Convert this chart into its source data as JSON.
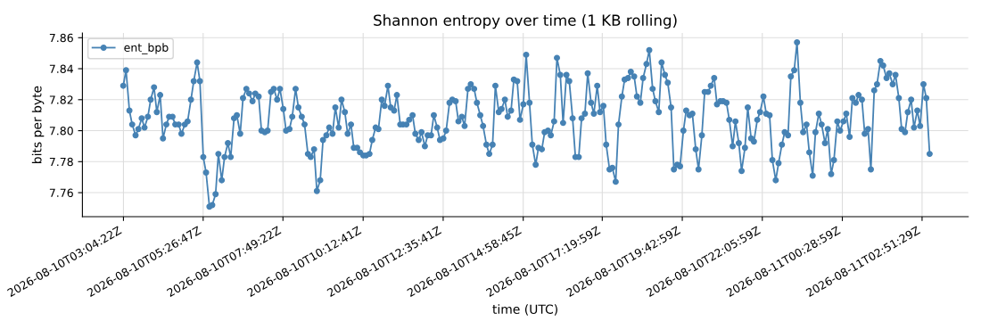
{
  "chart_data": {
    "type": "line",
    "title": "Shannon entropy over time (1 KB rolling)",
    "xlabel": "time (UTC)",
    "ylabel": "bits per byte",
    "x": [
      "2026-08-10T03:04",
      "2026-08-10T03:09",
      "2026-08-10T03:15",
      "2026-08-10T03:20",
      "2026-08-10T03:26",
      "2026-08-10T03:31",
      "2026-08-10T03:37",
      "2026-08-10T03:42",
      "2026-08-10T03:48",
      "2026-08-10T03:53",
      "2026-08-10T03:59",
      "2026-08-10T04:04",
      "2026-08-10T04:10",
      "2026-08-10T04:15",
      "2026-08-10T04:21",
      "2026-08-10T04:26",
      "2026-08-10T04:32",
      "2026-08-10T04:37",
      "2026-08-10T04:43",
      "2026-08-10T04:48",
      "2026-08-10T04:54",
      "2026-08-10T04:59",
      "2026-08-10T05:05",
      "2026-08-10T05:10",
      "2026-08-10T05:16",
      "2026-08-10T05:21",
      "2026-08-10T05:27",
      "2026-08-10T05:32",
      "2026-08-10T05:38",
      "2026-08-10T05:43",
      "2026-08-10T05:49",
      "2026-08-10T05:54",
      "2026-08-10T06:00",
      "2026-08-10T06:05",
      "2026-08-10T06:11",
      "2026-08-10T06:16",
      "2026-08-10T06:22",
      "2026-08-10T06:27",
      "2026-08-10T06:33",
      "2026-08-10T06:38",
      "2026-08-10T06:44",
      "2026-08-10T06:49",
      "2026-08-10T06:55",
      "2026-08-10T07:00",
      "2026-08-10T07:06",
      "2026-08-10T07:11",
      "2026-08-10T07:17",
      "2026-08-10T07:22",
      "2026-08-10T07:28",
      "2026-08-10T07:33",
      "2026-08-10T07:39",
      "2026-08-10T07:44",
      "2026-08-10T07:50",
      "2026-08-10T07:55",
      "2026-08-10T08:01",
      "2026-08-10T08:06",
      "2026-08-10T08:12",
      "2026-08-10T08:17",
      "2026-08-10T08:23",
      "2026-08-10T08:28",
      "2026-08-10T08:34",
      "2026-08-10T08:39",
      "2026-08-10T08:45",
      "2026-08-10T08:50",
      "2026-08-10T08:56",
      "2026-08-10T09:01",
      "2026-08-10T09:07",
      "2026-08-10T09:12",
      "2026-08-10T09:18",
      "2026-08-10T09:23",
      "2026-08-10T09:29",
      "2026-08-10T09:34",
      "2026-08-10T09:40",
      "2026-08-10T09:45",
      "2026-08-10T09:51",
      "2026-08-10T09:56",
      "2026-08-10T10:02",
      "2026-08-10T10:07",
      "2026-08-10T10:13",
      "2026-08-10T10:18",
      "2026-08-10T10:24",
      "2026-08-10T10:29",
      "2026-08-10T10:35",
      "2026-08-10T10:40",
      "2026-08-10T10:46",
      "2026-08-10T10:51",
      "2026-08-10T10:57",
      "2026-08-10T11:02",
      "2026-08-10T11:08",
      "2026-08-10T11:13",
      "2026-08-10T11:19",
      "2026-08-10T11:24",
      "2026-08-10T11:30",
      "2026-08-10T11:35",
      "2026-08-10T11:41",
      "2026-08-10T11:46",
      "2026-08-10T11:52",
      "2026-08-10T11:57",
      "2026-08-10T12:03",
      "2026-08-10T12:08",
      "2026-08-10T12:14",
      "2026-08-10T12:19",
      "2026-08-10T12:25",
      "2026-08-10T12:30",
      "2026-08-10T12:36",
      "2026-08-10T12:41",
      "2026-08-10T12:47",
      "2026-08-10T12:52",
      "2026-08-10T12:58",
      "2026-08-10T13:03",
      "2026-08-10T13:09",
      "2026-08-10T13:14",
      "2026-08-10T13:20",
      "2026-08-10T13:25",
      "2026-08-10T13:31",
      "2026-08-10T13:36",
      "2026-08-10T13:42",
      "2026-08-10T13:47",
      "2026-08-10T13:53",
      "2026-08-10T13:58",
      "2026-08-10T14:04",
      "2026-08-10T14:09",
      "2026-08-10T14:15",
      "2026-08-10T14:20",
      "2026-08-10T14:26",
      "2026-08-10T14:31",
      "2026-08-10T14:37",
      "2026-08-10T14:42",
      "2026-08-10T14:48",
      "2026-08-10T14:53",
      "2026-08-10T14:59",
      "2026-08-10T15:04",
      "2026-08-10T15:10",
      "2026-08-10T15:15",
      "2026-08-10T15:21",
      "2026-08-10T15:26",
      "2026-08-10T15:32",
      "2026-08-10T15:37",
      "2026-08-10T15:43",
      "2026-08-10T15:48",
      "2026-08-10T15:54",
      "2026-08-10T15:59",
      "2026-08-10T16:05",
      "2026-08-10T16:10",
      "2026-08-10T16:16",
      "2026-08-10T16:21",
      "2026-08-10T16:27",
      "2026-08-10T16:32",
      "2026-08-10T16:38",
      "2026-08-10T16:43",
      "2026-08-10T16:49",
      "2026-08-10T16:54",
      "2026-08-10T17:00",
      "2026-08-10T17:05",
      "2026-08-10T17:11",
      "2026-08-10T17:16",
      "2026-08-10T17:22",
      "2026-08-10T17:27",
      "2026-08-10T17:33",
      "2026-08-10T17:38",
      "2026-08-10T17:44",
      "2026-08-10T17:49",
      "2026-08-10T17:55",
      "2026-08-10T18:00",
      "2026-08-10T18:06",
      "2026-08-10T18:11",
      "2026-08-10T18:17",
      "2026-08-10T18:22",
      "2026-08-10T18:28",
      "2026-08-10T18:33",
      "2026-08-10T18:39",
      "2026-08-10T18:44",
      "2026-08-10T18:50",
      "2026-08-10T18:55",
      "2026-08-10T19:01",
      "2026-08-10T19:06",
      "2026-08-10T19:12",
      "2026-08-10T19:17",
      "2026-08-10T19:23",
      "2026-08-10T19:28",
      "2026-08-10T19:34",
      "2026-08-10T19:39",
      "2026-08-10T19:45",
      "2026-08-10T19:50",
      "2026-08-10T19:56",
      "2026-08-10T20:01",
      "2026-08-10T20:07",
      "2026-08-10T20:12",
      "2026-08-10T20:18",
      "2026-08-10T20:23",
      "2026-08-10T20:29",
      "2026-08-10T20:34",
      "2026-08-10T20:40",
      "2026-08-10T20:45",
      "2026-08-10T20:51",
      "2026-08-10T20:56",
      "2026-08-10T21:02",
      "2026-08-10T21:07",
      "2026-08-10T21:13",
      "2026-08-10T21:18",
      "2026-08-10T21:24",
      "2026-08-10T21:29",
      "2026-08-10T21:35",
      "2026-08-10T21:40",
      "2026-08-10T21:46",
      "2026-08-10T21:51",
      "2026-08-10T21:57",
      "2026-08-10T22:02",
      "2026-08-10T22:08",
      "2026-08-10T22:13",
      "2026-08-10T22:19",
      "2026-08-10T22:24",
      "2026-08-10T22:30",
      "2026-08-10T22:35",
      "2026-08-10T22:41",
      "2026-08-10T22:46",
      "2026-08-10T22:52",
      "2026-08-10T22:57",
      "2026-08-10T23:03",
      "2026-08-10T23:08",
      "2026-08-10T23:14",
      "2026-08-10T23:19",
      "2026-08-10T23:25",
      "2026-08-10T23:30",
      "2026-08-10T23:36",
      "2026-08-10T23:41",
      "2026-08-10T23:47",
      "2026-08-10T23:52",
      "2026-08-10T23:58",
      "2026-08-11T00:03",
      "2026-08-11T00:09",
      "2026-08-11T00:14",
      "2026-08-11T00:20",
      "2026-08-11T00:25",
      "2026-08-11T00:31",
      "2026-08-11T00:36",
      "2026-08-11T00:42",
      "2026-08-11T00:47",
      "2026-08-11T00:53",
      "2026-08-11T00:58",
      "2026-08-11T01:04",
      "2026-08-11T01:09",
      "2026-08-11T01:15",
      "2026-08-11T01:20",
      "2026-08-11T01:26",
      "2026-08-11T01:31",
      "2026-08-11T01:37",
      "2026-08-11T01:42",
      "2026-08-11T01:48",
      "2026-08-11T01:53",
      "2026-08-11T01:59",
      "2026-08-11T02:04",
      "2026-08-11T02:10",
      "2026-08-11T02:15",
      "2026-08-11T02:21",
      "2026-08-11T02:26",
      "2026-08-11T02:32",
      "2026-08-11T02:37",
      "2026-08-11T02:43",
      "2026-08-11T02:48",
      "2026-08-11T02:54",
      "2026-08-11T02:59",
      "2026-08-11T03:05"
    ],
    "series": [
      {
        "name": "ent_bpb",
        "color": "#4682b4",
        "values": [
          7.829,
          7.839,
          7.813,
          7.804,
          7.797,
          7.801,
          7.808,
          7.802,
          7.809,
          7.82,
          7.828,
          7.812,
          7.823,
          7.795,
          7.804,
          7.809,
          7.809,
          7.804,
          7.804,
          7.798,
          7.804,
          7.806,
          7.82,
          7.832,
          7.844,
          7.832,
          7.783,
          7.773,
          7.751,
          7.752,
          7.759,
          7.785,
          7.768,
          7.783,
          7.792,
          7.783,
          7.808,
          7.81,
          7.798,
          7.821,
          7.827,
          7.824,
          7.819,
          7.824,
          7.822,
          7.8,
          7.799,
          7.8,
          7.825,
          7.827,
          7.82,
          7.827,
          7.814,
          7.8,
          7.801,
          7.809,
          7.827,
          7.815,
          7.809,
          7.804,
          7.785,
          7.783,
          7.788,
          7.761,
          7.768,
          7.794,
          7.797,
          7.802,
          7.798,
          7.815,
          7.802,
          7.82,
          7.812,
          7.798,
          7.804,
          7.789,
          7.789,
          7.786,
          7.784,
          7.784,
          7.785,
          7.794,
          7.802,
          7.801,
          7.82,
          7.816,
          7.829,
          7.815,
          7.813,
          7.823,
          7.804,
          7.804,
          7.804,
          7.807,
          7.81,
          7.798,
          7.794,
          7.799,
          7.79,
          7.797,
          7.797,
          7.81,
          7.802,
          7.794,
          7.795,
          7.8,
          7.818,
          7.82,
          7.819,
          7.806,
          7.809,
          7.803,
          7.827,
          7.83,
          7.827,
          7.818,
          7.81,
          7.803,
          7.791,
          7.785,
          7.791,
          7.829,
          7.812,
          7.814,
          7.82,
          7.809,
          7.813,
          7.833,
          7.832,
          7.807,
          7.817,
          7.849,
          7.818,
          7.791,
          7.778,
          7.789,
          7.788,
          7.799,
          7.8,
          7.797,
          7.806,
          7.847,
          7.836,
          7.805,
          7.836,
          7.832,
          7.808,
          7.783,
          7.783,
          7.808,
          7.811,
          7.837,
          7.818,
          7.811,
          7.829,
          7.812,
          7.816,
          7.791,
          7.775,
          7.776,
          7.767,
          7.804,
          7.822,
          7.833,
          7.834,
          7.838,
          7.835,
          7.822,
          7.818,
          7.834,
          7.843,
          7.852,
          7.827,
          7.819,
          7.812,
          7.844,
          7.836,
          7.831,
          7.815,
          7.775,
          7.778,
          7.777,
          7.8,
          7.813,
          7.81,
          7.811,
          7.788,
          7.775,
          7.797,
          7.825,
          7.825,
          7.829,
          7.834,
          7.817,
          7.819,
          7.819,
          7.818,
          7.807,
          7.79,
          7.806,
          7.792,
          7.774,
          7.789,
          7.815,
          7.795,
          7.793,
          7.807,
          7.812,
          7.822,
          7.811,
          7.81,
          7.781,
          7.768,
          7.779,
          7.791,
          7.799,
          7.797,
          7.835,
          7.839,
          7.857,
          7.818,
          7.799,
          7.804,
          7.786,
          7.771,
          7.799,
          7.811,
          7.804,
          7.792,
          7.801,
          7.772,
          7.781,
          7.806,
          7.8,
          7.806,
          7.811,
          7.796,
          7.821,
          7.818,
          7.823,
          7.82,
          7.798,
          7.801,
          7.775,
          7.826,
          7.83,
          7.845,
          7.842,
          7.834,
          7.837,
          7.83,
          7.836,
          7.821,
          7.801,
          7.799,
          7.812,
          7.82,
          7.802,
          7.813,
          7.803,
          7.83,
          7.821,
          7.785
        ]
      }
    ],
    "xlim": [
      "2026-08-10T01:51",
      "2026-08-11T04:14"
    ],
    "xticks": [
      {
        "value": "2026-08-10T03:04:22",
        "label": "2026-08-10T03:04:22Z"
      },
      {
        "value": "2026-08-10T05:26:47",
        "label": "2026-08-10T05:26:47Z"
      },
      {
        "value": "2026-08-10T07:49:22",
        "label": "2026-08-10T07:49:22Z"
      },
      {
        "value": "2026-08-10T10:12:41",
        "label": "2026-08-10T10:12:41Z"
      },
      {
        "value": "2026-08-10T12:35:41",
        "label": "2026-08-10T12:35:41Z"
      },
      {
        "value": "2026-08-10T14:58:45",
        "label": "2026-08-10T14:58:45Z"
      },
      {
        "value": "2026-08-10T17:19:59",
        "label": "2026-08-10T17:19:59Z"
      },
      {
        "value": "2026-08-10T19:42:59",
        "label": "2026-08-10T19:42:59Z"
      },
      {
        "value": "2026-08-10T22:05:59",
        "label": "2026-08-10T22:05:59Z"
      },
      {
        "value": "2026-08-11T00:28:59",
        "label": "2026-08-11T00:28:59Z"
      },
      {
        "value": "2026-08-11T02:51:29",
        "label": "2026-08-11T02:51:29Z"
      }
    ],
    "ylim": [
      7.7445,
      7.863
    ],
    "yticks": [
      7.76,
      7.78,
      {
        "value": 7.8,
        "label": "7.80"
      },
      7.82,
      7.84,
      7.86
    ],
    "grid": true,
    "legend": "top left",
    "marker": "circle",
    "line_style": "solid"
  }
}
